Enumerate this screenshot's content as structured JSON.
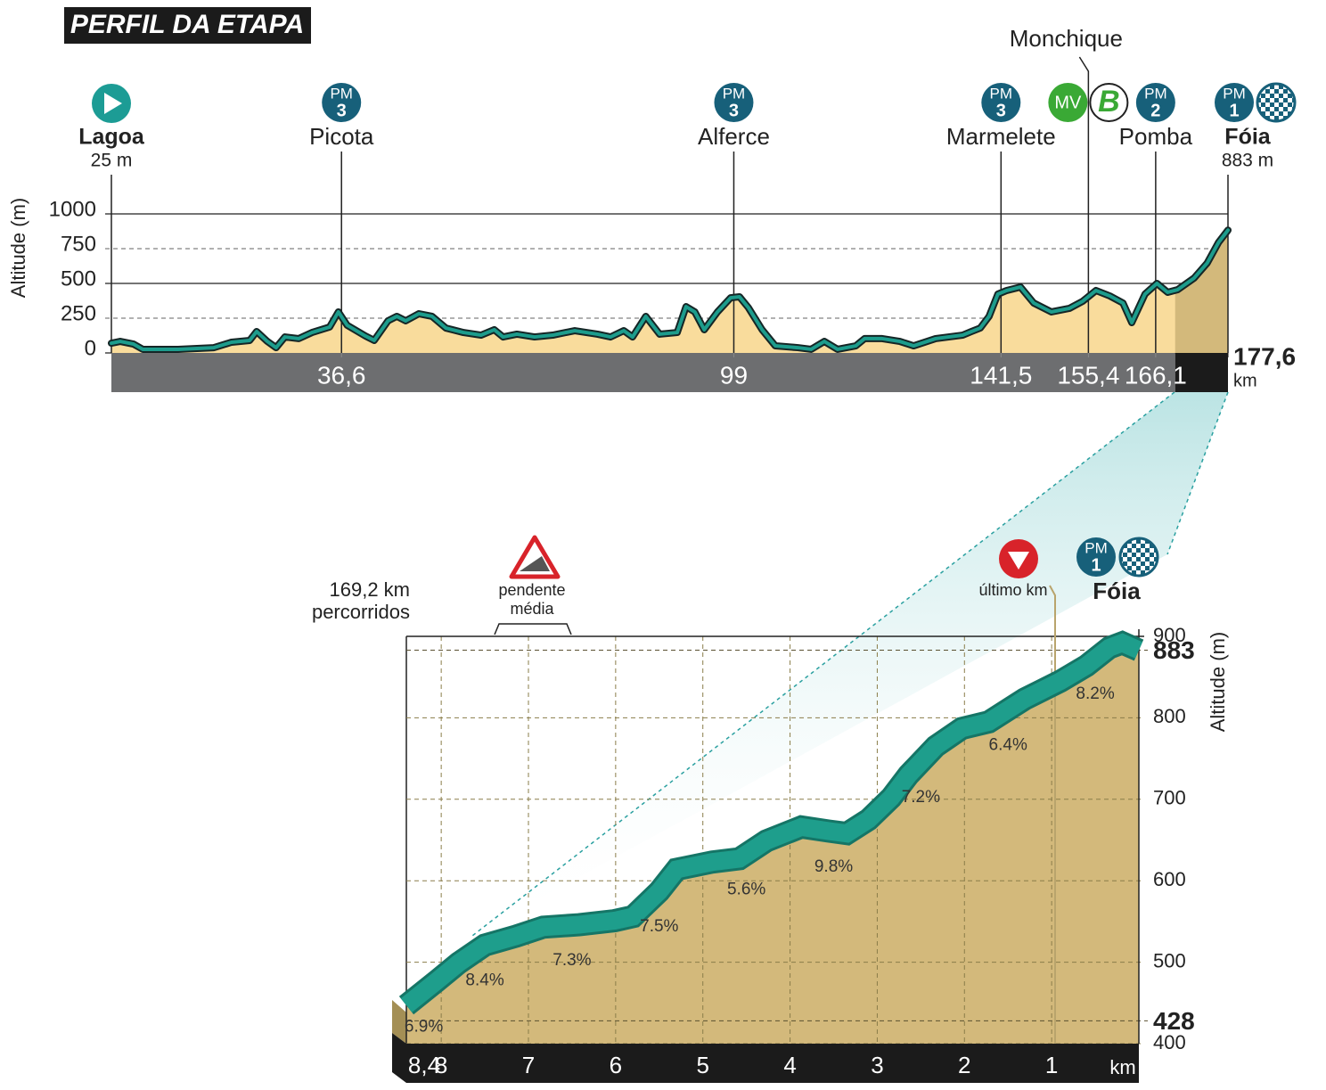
{
  "header": {
    "title": "PERFIL DA ETAPA"
  },
  "chart_data": [
    {
      "type": "area",
      "y_label": "Altitude (m)",
      "x_unit": "km",
      "xlim": [
        0,
        177.6
      ],
      "ylim": [
        0,
        1000
      ],
      "yticks": [
        0,
        250,
        500,
        750,
        1000
      ],
      "xticks": [
        {
          "value": 36.6,
          "label": "36,6"
        },
        99,
        {
          "value": 141.5,
          "label": "141,5"
        },
        {
          "value": 155.4,
          "label": "155,4"
        },
        {
          "value": 166.1,
          "label": "166,1"
        },
        {
          "value": 177.6,
          "label": "177,6"
        }
      ],
      "color": "#1d9c8c",
      "fill": "#f9dc9c",
      "highlight_fill": "#d3b97b",
      "highlight_from": 169.2,
      "x": [
        0,
        1.4,
        3.5,
        5,
        10.6,
        16.3,
        19.1,
        22,
        23.1,
        24.8,
        26.2,
        27.6,
        29.8,
        31.9,
        34.7,
        36.1,
        37.5,
        40.4,
        41.8,
        44,
        45.4,
        46.8,
        48.9,
        51,
        53.2,
        56,
        58.8,
        60.9,
        62.3,
        64.5,
        67.3,
        70.2,
        73.7,
        77.3,
        79.4,
        81.5,
        82.9,
        85,
        87.2,
        90,
        91.4,
        92.8,
        94.3,
        96.4,
        98.5,
        99.9,
        101.3,
        103.5,
        105.6,
        109.2,
        111.3,
        113.4,
        115.5,
        118.4,
        119.8,
        122.6,
        125.4,
        127.6,
        131.1,
        135.4,
        136.8,
        138.2,
        139.6,
        141,
        142.4,
        144.6,
        146.7,
        149.5,
        152.4,
        154.5,
        156.6,
        158.8,
        160.9,
        162.3,
        164.4,
        166.3,
        168,
        169.6,
        172.2,
        174.3,
        176.1,
        177.6
      ],
      "values": [
        70,
        83,
        64,
        26,
        26,
        38,
        77,
        90,
        154,
        83,
        38,
        115,
        103,
        147,
        186,
        295,
        199,
        122,
        90,
        231,
        263,
        231,
        282,
        263,
        179,
        147,
        128,
        167,
        115,
        135,
        115,
        128,
        160,
        135,
        115,
        160,
        115,
        263,
        135,
        147,
        333,
        295,
        167,
        295,
        397,
        404,
        327,
        167,
        51,
        38,
        26,
        83,
        26,
        51,
        103,
        103,
        83,
        51,
        103,
        128,
        154,
        179,
        263,
        423,
        449,
        474,
        359,
        295,
        321,
        372,
        449,
        410,
        359,
        218,
        423,
        500,
        436,
        455,
        538,
        647,
        795,
        883
      ],
      "waypoints": [
        {
          "name": "Lagoa",
          "km": 0,
          "altitude": "25 m"
        },
        {
          "name": "Picota",
          "km": 36.6,
          "badges": [
            {
              "text": "PM",
              "sub": "3",
              "color": "#17607a"
            }
          ]
        },
        {
          "name": "Alferce",
          "km": 99,
          "badges": [
            {
              "text": "PM",
              "sub": "3",
              "color": "#17607a"
            }
          ]
        },
        {
          "name": "Marmelete",
          "km": 141.5,
          "badges": [
            {
              "text": "PM",
              "sub": "3",
              "color": "#17607a"
            }
          ]
        },
        {
          "name": "Monchique",
          "km": 155.4,
          "badges": [
            {
              "text": "MV",
              "color": "#3aa935"
            },
            {
              "text": "B",
              "color": "#3aa935"
            }
          ]
        },
        {
          "name": "Pomba",
          "km": 166.1,
          "badges": [
            {
              "text": "PM",
              "sub": "2",
              "color": "#17607a"
            }
          ]
        },
        {
          "name": "Fóia",
          "km": 177.6,
          "altitude": "883 m",
          "badges": [
            {
              "text": "PM",
              "sub": "1",
              "color": "#17607a"
            }
          ]
        }
      ]
    },
    {
      "type": "area",
      "y_label": "Altitude (m)",
      "x_unit": "km",
      "xlim": [
        8.4,
        0
      ],
      "ylim": [
        400,
        900
      ],
      "yticks": [
        400,
        500,
        600,
        700,
        800,
        900
      ],
      "yreference": [
        428,
        883
      ],
      "xticks": [
        {
          "value": 8.4,
          "label": "8,4"
        },
        8,
        7,
        6,
        5,
        4,
        3,
        2,
        1
      ],
      "color": "#1e9e8c",
      "fill": "#d3b97b",
      "start_note": [
        "169,2 km",
        "percorridos"
      ],
      "gradient_title": [
        "pendente",
        "média"
      ],
      "gradients": {
        "values": [
          6.9,
          8.4,
          7.3,
          7.5,
          5.6,
          9.8,
          7.2,
          6.4,
          8.2
        ],
        "value_labels": [
          "6.9%",
          "8.4%",
          "7.3%",
          "7.5%",
          "5.6%",
          "9.8%",
          "7.2%",
          "6.4%",
          "8.2%"
        ]
      },
      "last_km": "último km",
      "finish": {
        "name": "Fóia",
        "badges": [
          {
            "text": "PM",
            "sub": "1",
            "color": "#17607a"
          }
        ]
      },
      "x": [
        8.4,
        8.05,
        7.8,
        7.5,
        7.14,
        6.83,
        6.42,
        6.01,
        5.8,
        5.5,
        5.3,
        4.89,
        4.58,
        4.27,
        3.87,
        3.56,
        3.35,
        3.1,
        2.84,
        2.64,
        2.33,
        2.03,
        1.72,
        1.31,
        0.9,
        0.6,
        0.34,
        0.19,
        0
      ],
      "values": [
        447,
        477,
        499,
        521,
        532,
        543,
        546,
        551,
        556,
        587,
        614,
        623,
        627,
        649,
        666,
        661,
        658,
        675,
        702,
        730,
        765,
        787,
        795,
        823,
        845,
        864,
        886,
        892,
        883
      ]
    }
  ]
}
